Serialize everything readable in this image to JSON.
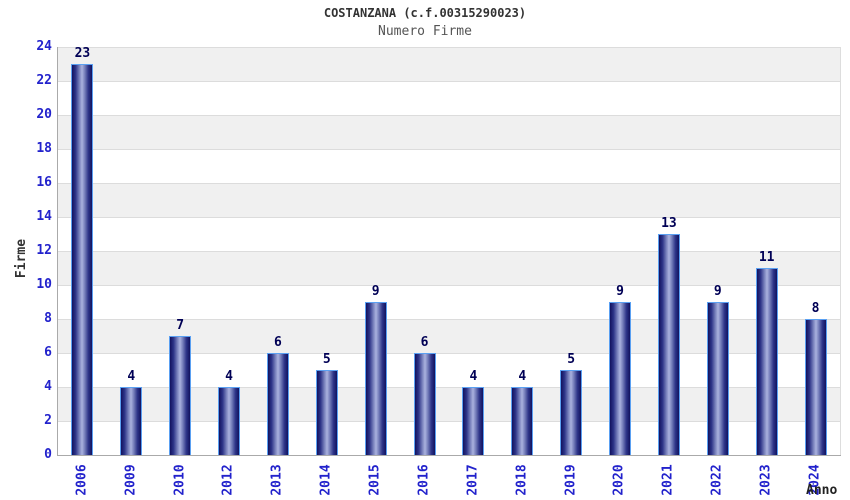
{
  "header": {
    "title": "COSTANZANA (c.f.00315290023)",
    "subtitle": "Numero Firme"
  },
  "axes": {
    "y_label": "Firme",
    "x_label": "Anno"
  },
  "chart_data": {
    "type": "bar",
    "title": "COSTANZANA (c.f.00315290023)",
    "subtitle": "Numero Firme",
    "xlabel": "Anno",
    "ylabel": "Firme",
    "categories": [
      "2006",
      "2009",
      "2010",
      "2012",
      "2013",
      "2014",
      "2015",
      "2016",
      "2017",
      "2018",
      "2019",
      "2020",
      "2021",
      "2022",
      "2023",
      "2024"
    ],
    "values": [
      23,
      4,
      7,
      4,
      6,
      5,
      9,
      6,
      4,
      4,
      5,
      9,
      13,
      9,
      11,
      8
    ],
    "ylim": [
      0,
      24
    ],
    "y_tick_step": 2,
    "y_ticks": [
      0,
      2,
      4,
      6,
      8,
      10,
      12,
      14,
      16,
      18,
      20,
      22,
      24
    ],
    "grid": true,
    "legend": false,
    "colors": {
      "band_gray": "#f0f0f0",
      "band_white": "#ffffff",
      "gridline": "#dcdcdc",
      "axis_line": "#aaaaaa",
      "tick_label": "#2222cc",
      "value_label": "#000055",
      "bar_border": "#5aa0f2",
      "bar_dark": "#12125e",
      "bar_light": "#aab2de",
      "title": "#333333",
      "subtitle": "#555555"
    }
  }
}
